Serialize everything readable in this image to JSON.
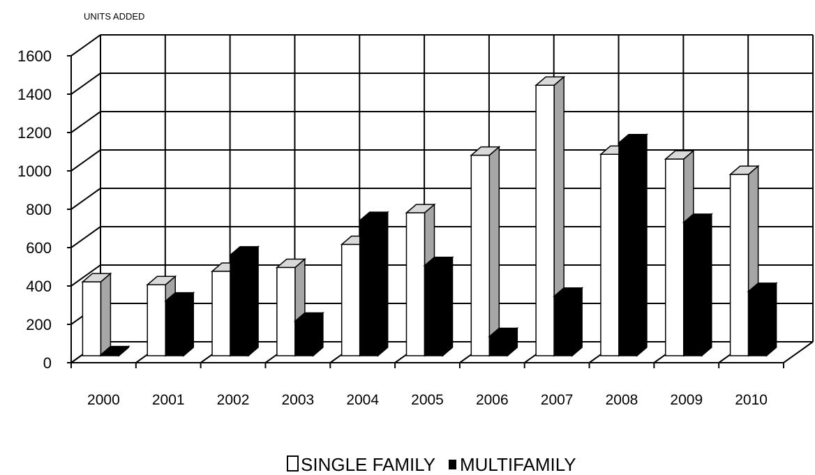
{
  "chart_data": {
    "type": "bar",
    "title": "",
    "ylabel": "UNITS ADDED",
    "xlabel": "",
    "categories": [
      "2000",
      "2001",
      "2002",
      "2003",
      "2004",
      "2005",
      "2006",
      "2007",
      "2008",
      "2009",
      "2010"
    ],
    "series": [
      {
        "name": "SINGLE FAMILY",
        "color": "#ffffff",
        "side_color": "#a6a6a6",
        "values": [
          385,
          370,
          440,
          460,
          580,
          745,
          1045,
          1410,
          1050,
          1025,
          945
        ]
      },
      {
        "name": "MULTIFAMILY",
        "color": "#000000",
        "side_color": "#000000",
        "values": [
          5,
          285,
          525,
          180,
          705,
          470,
          100,
          310,
          1110,
          695,
          335
        ]
      }
    ],
    "ylim": [
      0,
      1600
    ],
    "yticks": [
      "0",
      "200",
      "400",
      "600",
      "800",
      "1000",
      "1200",
      "1400",
      "1600"
    ],
    "grid": true,
    "legend": "bottom-center",
    "style": "3d-clustered-column"
  }
}
